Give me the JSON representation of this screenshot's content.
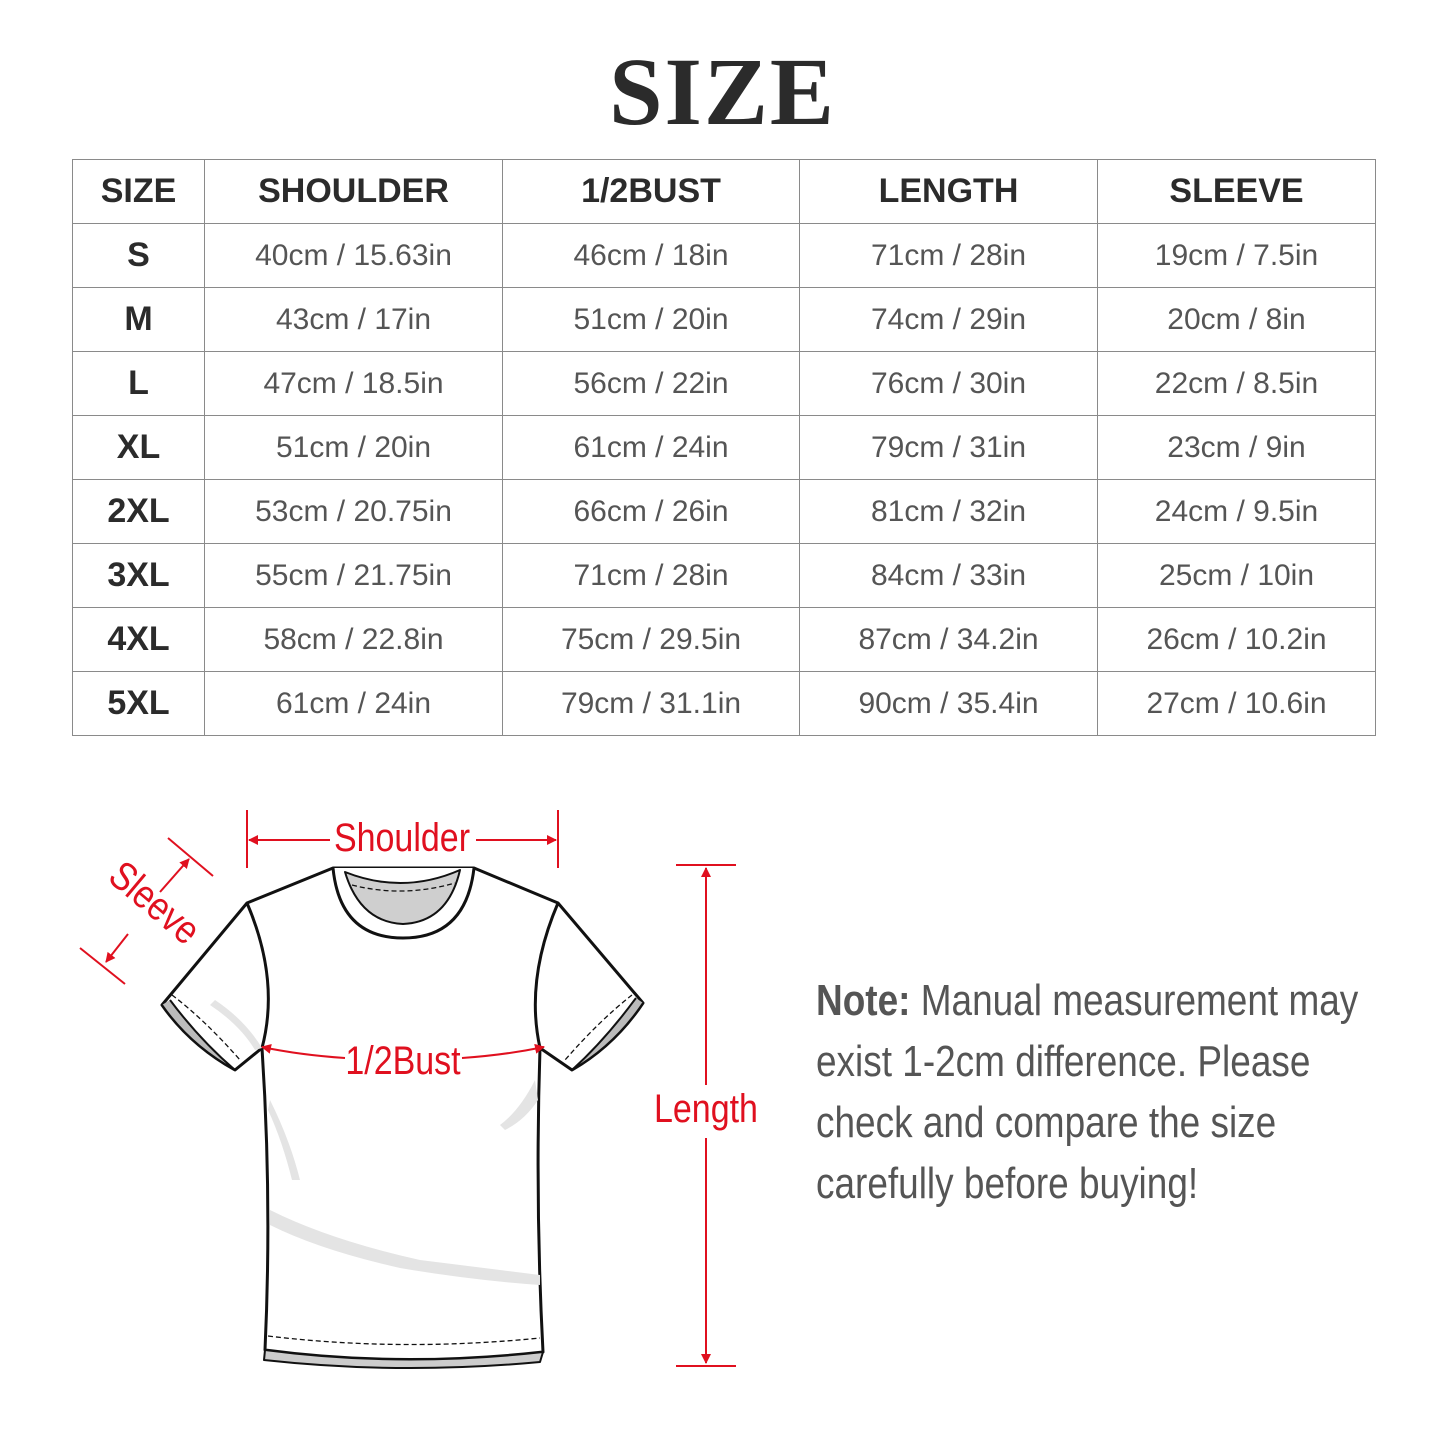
{
  "title": "SIZE",
  "table": {
    "headers": [
      "SIZE",
      "SHOULDER",
      "1/2BUST",
      "LENGTH",
      "SLEEVE"
    ],
    "rows": [
      [
        "S",
        "40cm / 15.63in",
        "46cm / 18in",
        "71cm / 28in",
        "19cm / 7.5in"
      ],
      [
        "M",
        "43cm / 17in",
        "51cm / 20in",
        "74cm / 29in",
        "20cm / 8in"
      ],
      [
        "L",
        "47cm / 18.5in",
        "56cm / 22in",
        "76cm / 30in",
        "22cm / 8.5in"
      ],
      [
        "XL",
        "51cm / 20in",
        "61cm / 24in",
        "79cm / 31in",
        "23cm / 9in"
      ],
      [
        "2XL",
        "53cm / 20.75in",
        "66cm / 26in",
        "81cm / 32in",
        "24cm / 9.5in"
      ],
      [
        "3XL",
        "55cm / 21.75in",
        "71cm / 28in",
        "84cm / 33in",
        "25cm / 10in"
      ],
      [
        "4XL",
        "58cm / 22.8in",
        "75cm / 29.5in",
        "87cm / 34.2in",
        "26cm / 10.2in"
      ],
      [
        "5XL",
        "61cm / 24in",
        "79cm / 31.1in",
        "90cm / 35.4in",
        "27cm / 10.6in"
      ]
    ]
  },
  "diagram": {
    "shoulder_label": "Shoulder",
    "sleeve_label": "Sleeve",
    "bust_label": "1/2Bust",
    "length_label": "Length",
    "accent_color": "#e0101f"
  },
  "note": {
    "label": "Note:",
    "text": "Manual measurement may exist 1-2cm difference. Please check and compare the size carefully before buying!"
  }
}
